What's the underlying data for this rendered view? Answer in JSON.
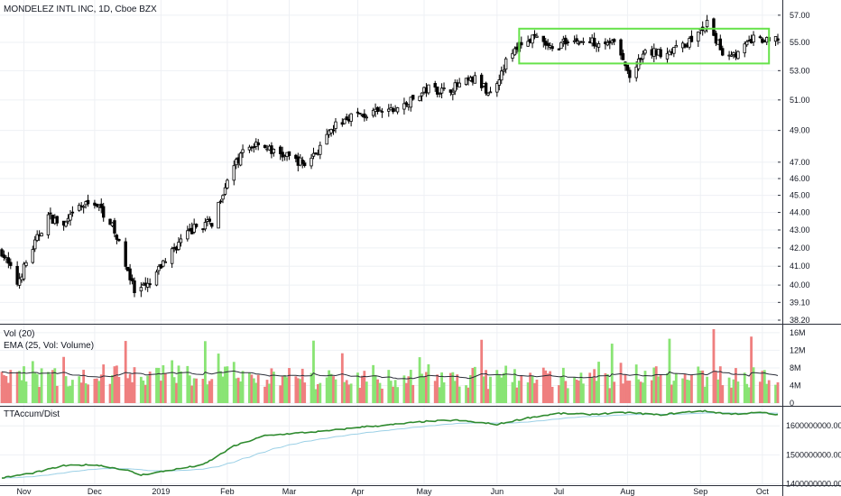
{
  "chart_data": {
    "type": "candlestick",
    "title": "MONDELEZ INTL INC, 1D, Cboe BZX",
    "grid": true,
    "price_panel": {
      "y_ticks": [
        38.2,
        39.1,
        40.0,
        41.0,
        42.0,
        43.0,
        44.0,
        45.0,
        46.0,
        47.0,
        49.0,
        51.0,
        53.0,
        55.0,
        57.0
      ],
      "y_tick_labels": [
        "38.20",
        "39.10",
        "40.00",
        "41.00",
        "42.00",
        "43.00",
        "44.00",
        "45.00",
        "46.00",
        "47.00",
        "49.00",
        "51.00",
        "53.00",
        "55.00",
        "57.00"
      ],
      "y_range": [
        38.2,
        57.6
      ],
      "scale": "log",
      "annotation": {
        "type": "rectangle",
        "color": "#66e24a",
        "x_from": "2019-06-13",
        "x_to": "2019-10-04",
        "price_low": 53.5,
        "price_high": 56.0
      },
      "close_path": [
        [
          "2018-10-22",
          41.8
        ],
        [
          "2018-10-29",
          40.1
        ],
        [
          "2018-11-05",
          42.0
        ],
        [
          "2018-11-12",
          43.8
        ],
        [
          "2018-11-19",
          43.2
        ],
        [
          "2018-11-26",
          44.3
        ],
        [
          "2018-12-03",
          44.6
        ],
        [
          "2018-12-10",
          43.5
        ],
        [
          "2018-12-17",
          41.2
        ],
        [
          "2018-12-21",
          39.6
        ],
        [
          "2018-12-28",
          40.0
        ],
        [
          "2019-01-04",
          41.4
        ],
        [
          "2019-01-11",
          42.4
        ],
        [
          "2019-01-18",
          43.2
        ],
        [
          "2019-01-25",
          43.4
        ],
        [
          "2019-02-01",
          46.0
        ],
        [
          "2019-02-08",
          47.6
        ],
        [
          "2019-02-15",
          48.3
        ],
        [
          "2019-02-22",
          47.6
        ],
        [
          "2019-03-01",
          47.3
        ],
        [
          "2019-03-08",
          46.9
        ],
        [
          "2019-03-15",
          47.9
        ],
        [
          "2019-03-22",
          49.3
        ],
        [
          "2019-03-29",
          50.0
        ],
        [
          "2019-04-05",
          50.0
        ],
        [
          "2019-04-12",
          50.2
        ],
        [
          "2019-04-19",
          50.4
        ],
        [
          "2019-04-26",
          51.0
        ],
        [
          "2019-05-03",
          51.8
        ],
        [
          "2019-05-10",
          51.6
        ],
        [
          "2019-05-17",
          52.0
        ],
        [
          "2019-05-24",
          52.4
        ],
        [
          "2019-05-31",
          51.4
        ],
        [
          "2019-06-07",
          53.6
        ],
        [
          "2019-06-14",
          55.0
        ],
        [
          "2019-06-21",
          55.3
        ],
        [
          "2019-06-28",
          54.4
        ],
        [
          "2019-07-05",
          55.2
        ],
        [
          "2019-07-12",
          55.0
        ],
        [
          "2019-07-19",
          55.1
        ],
        [
          "2019-07-26",
          55.0
        ],
        [
          "2019-08-02",
          52.6
        ],
        [
          "2019-08-09",
          54.2
        ],
        [
          "2019-08-16",
          54.3
        ],
        [
          "2019-08-23",
          54.5
        ],
        [
          "2019-08-30",
          55.2
        ],
        [
          "2019-09-06",
          56.3
        ],
        [
          "2019-09-13",
          54.3
        ],
        [
          "2019-09-20",
          54.2
        ],
        [
          "2019-09-27",
          55.3
        ],
        [
          "2019-10-04",
          55.0
        ],
        [
          "2019-10-08",
          55.3
        ]
      ]
    },
    "volume_panel": {
      "title": "Vol (20)",
      "ema_label": "EMA (25, Vol: Volume)",
      "y_ticks": [
        0,
        4000000,
        8000000,
        12000000,
        16000000
      ],
      "y_tick_labels": [
        "0",
        "4M",
        "8M",
        "12M",
        "16M"
      ],
      "y_range": [
        0,
        17000000
      ],
      "up_color": "#89e474",
      "down_color": "#ef7f7f",
      "ema_color": "#2a2e39"
    },
    "indicator_panel": {
      "title": "TTAccum/Dist",
      "y_ticks": [
        1400000000,
        1500000000,
        1600000000
      ],
      "y_tick_labels": [
        "1400000000.00",
        "1500000000.00",
        "1600000000.00"
      ],
      "y_range": [
        1395000000,
        1660000000
      ],
      "line_color": "#2e8a2e",
      "signal_color": "#9bd0e6",
      "path": [
        [
          "2018-10-22",
          1420000000
        ],
        [
          "2018-11-05",
          1437000000
        ],
        [
          "2018-11-19",
          1462000000
        ],
        [
          "2018-12-03",
          1466000000
        ],
        [
          "2018-12-17",
          1448000000
        ],
        [
          "2018-12-24",
          1430000000
        ],
        [
          "2019-01-07",
          1448000000
        ],
        [
          "2019-01-21",
          1465000000
        ],
        [
          "2019-02-04",
          1530000000
        ],
        [
          "2019-02-18",
          1566000000
        ],
        [
          "2019-03-04",
          1575000000
        ],
        [
          "2019-03-18",
          1582000000
        ],
        [
          "2019-04-01",
          1595000000
        ],
        [
          "2019-04-15",
          1603000000
        ],
        [
          "2019-05-01",
          1615000000
        ],
        [
          "2019-05-15",
          1620000000
        ],
        [
          "2019-06-03",
          1605000000
        ],
        [
          "2019-06-17",
          1628000000
        ],
        [
          "2019-07-01",
          1643000000
        ],
        [
          "2019-07-15",
          1640000000
        ],
        [
          "2019-08-01",
          1646000000
        ],
        [
          "2019-08-15",
          1638000000
        ],
        [
          "2019-09-03",
          1652000000
        ],
        [
          "2019-09-17",
          1641000000
        ],
        [
          "2019-10-01",
          1646000000
        ],
        [
          "2019-10-08",
          1638000000
        ]
      ]
    },
    "x_ticks": [
      {
        "label": "Nov",
        "date": "2018-11-01"
      },
      {
        "label": "Dec",
        "date": "2018-12-03"
      },
      {
        "label": "2019",
        "date": "2019-01-02"
      },
      {
        "label": "Feb",
        "date": "2019-02-01"
      },
      {
        "label": "Mar",
        "date": "2019-03-01"
      },
      {
        "label": "Apr",
        "date": "2019-04-01"
      },
      {
        "label": "May",
        "date": "2019-05-01"
      },
      {
        "label": "Jun",
        "date": "2019-06-03"
      },
      {
        "label": "Jul",
        "date": "2019-07-01"
      },
      {
        "label": "Aug",
        "date": "2019-08-01"
      },
      {
        "label": "Sep",
        "date": "2019-09-03"
      },
      {
        "label": "Oct",
        "date": "2019-10-01"
      }
    ],
    "x_range": [
      "2018-10-22",
      "2019-10-08"
    ],
    "colors": {
      "candle": "#000000",
      "grid": "#eef0f4",
      "separator": "#2a2e39"
    }
  }
}
